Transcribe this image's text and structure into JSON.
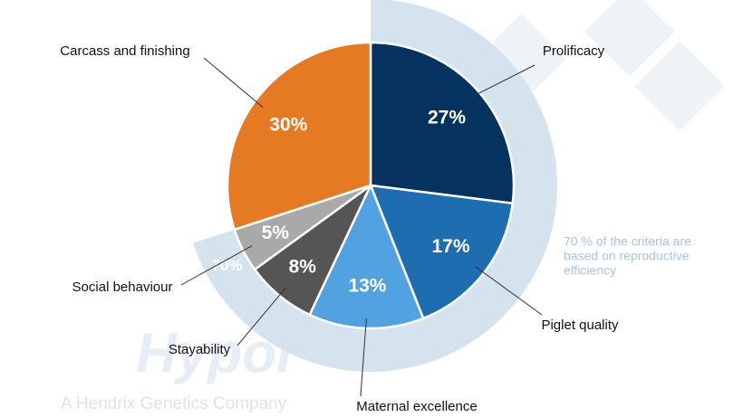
{
  "chart_data": {
    "type": "pie",
    "categories": [
      "Prolificacy",
      "Piglet quality",
      "Maternal excellence",
      "Stayability",
      "Social behaviour",
      "Carcass and finishing"
    ],
    "values": [
      27,
      17,
      13,
      8,
      5,
      30
    ],
    "value_labels": [
      "27%",
      "17%",
      "13%",
      "8%",
      "5%",
      "30%"
    ],
    "colors": [
      "#06325f",
      "#1f6db1",
      "#52a2e2",
      "#555555",
      "#a9a9a9",
      "#e57a22"
    ],
    "ring_value": 70,
    "ring_label": "70%",
    "ring_color": "#d5e3ef",
    "annotation": [
      "70 % of the criteria are",
      "based on reproductive",
      "efficiency"
    ],
    "watermark": "Hypor",
    "watermark_subtitle": "A Hendrix Genetics Company"
  }
}
